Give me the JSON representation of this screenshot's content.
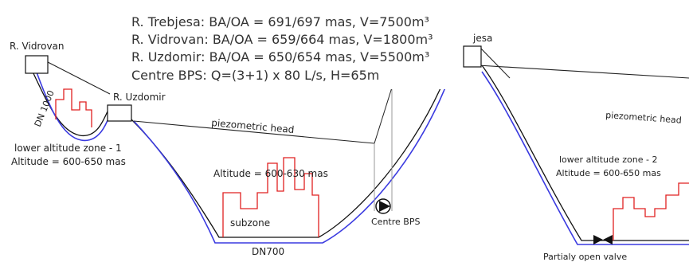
{
  "info": {
    "lines": [
      "R. Trebjesa: BA/OA = 691/697 mas, V=7500m³",
      "R. Vidrovan: BA/OA = 659/664 mas, V=1800m³",
      "R. Uzdomir: BA/OA = 650/654 mas, V=5500m³",
      "Centre BPS: Q=(3+1) x 80 L/s, H=65m"
    ]
  },
  "labels": {
    "trebjesa_partial": "jesa",
    "vidrovan": "R. Vidrovan",
    "uzdomir": "R. Uzdomir",
    "dn1000": "DN 1000",
    "piezo_left": "piezometric head",
    "piezo_right": "piezometric head",
    "zone1_line1": "lower altitude zone - 1",
    "zone1_line2": "Altitude = 600-650 mas",
    "altitude_mid": "Altitude = 600-630 mas",
    "subzone": "subzone",
    "dn700": "DN700",
    "centre_bps": "Centre BPS",
    "zone2_line1": "lower altitude zone - 2",
    "zone2_line2": "Altitude = 600-650 mas",
    "valve": "Partialy open valve"
  },
  "colors": {
    "pipe": "#3a3ae0",
    "ground": "#111111",
    "zone": "#e02020",
    "piezo": "#222222"
  }
}
